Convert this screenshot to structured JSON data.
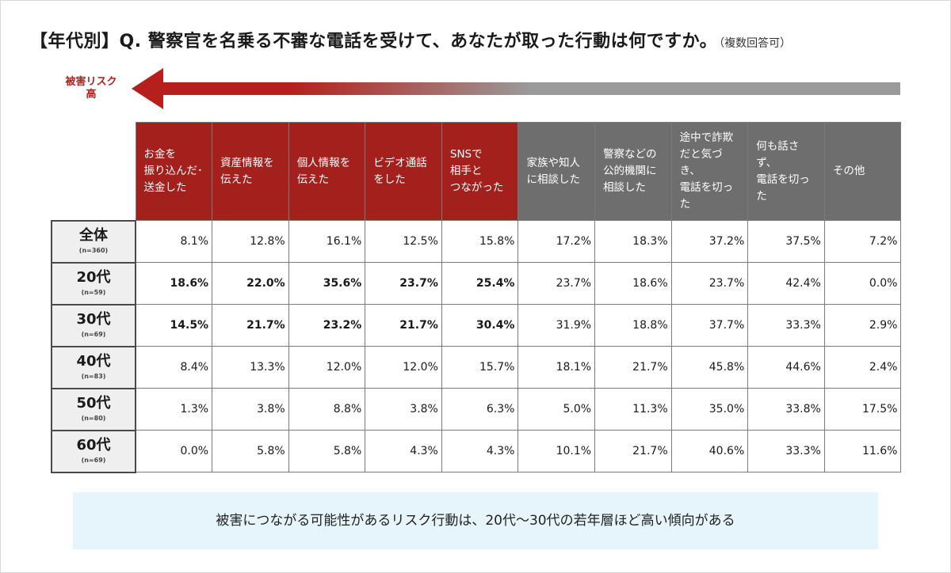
{
  "title": {
    "main": "【年代別】Q. 警察官を名乗る不審な電話を受けて、あなたが取った行動は何ですか。",
    "sub": "（複数回答可）"
  },
  "risk_label": "被害リスク\n高",
  "colors": {
    "risk_header": "#a3201c",
    "safe_header": "#6e6e6e",
    "highlight": "#fbeee4",
    "arrow_red": "#b5201c",
    "arrow_gray": "#9a9a9a",
    "note_bg": "#e6f4fc"
  },
  "chart_data": {
    "type": "table",
    "columns": [
      {
        "label": "お金を\n振り込んだ･\n送金した",
        "group": "risk"
      },
      {
        "label": "資産情報を\n伝えた",
        "group": "risk"
      },
      {
        "label": "個人情報を\n伝えた",
        "group": "risk"
      },
      {
        "label": "ビデオ通話\nをした",
        "group": "risk"
      },
      {
        "label": "SNSで\n相手と\nつながった",
        "group": "risk"
      },
      {
        "label": "家族や知人\nに相談した",
        "group": "safe"
      },
      {
        "label": "警察などの\n公的機関に\n相談した",
        "group": "safe"
      },
      {
        "label": "途中で詐欺\nだと気づき、\n電話を切っ\nた",
        "group": "safe"
      },
      {
        "label": "何も話さず、\n電話を切っ\nた",
        "group": "safe"
      },
      {
        "label": "その他",
        "group": "safe"
      }
    ],
    "rows": [
      {
        "label": "全体",
        "n": "(n=360)",
        "values": [
          "8.1%",
          "12.8%",
          "16.1%",
          "12.5%",
          "15.8%",
          "17.2%",
          "18.3%",
          "37.2%",
          "37.5%",
          "7.2%"
        ],
        "highlight": false
      },
      {
        "label": "20代",
        "n": "(n=59)",
        "values": [
          "18.6%",
          "22.0%",
          "35.6%",
          "23.7%",
          "25.4%",
          "23.7%",
          "18.6%",
          "23.7%",
          "42.4%",
          "0.0%"
        ],
        "highlight": true
      },
      {
        "label": "30代",
        "n": "(n=69)",
        "values": [
          "14.5%",
          "21.7%",
          "23.2%",
          "21.7%",
          "30.4%",
          "31.9%",
          "18.8%",
          "37.7%",
          "33.3%",
          "2.9%"
        ],
        "highlight": true
      },
      {
        "label": "40代",
        "n": "(n=83)",
        "values": [
          "8.4%",
          "13.3%",
          "12.0%",
          "12.0%",
          "15.7%",
          "18.1%",
          "21.7%",
          "45.8%",
          "44.6%",
          "2.4%"
        ],
        "highlight": false
      },
      {
        "label": "50代",
        "n": "(n=80)",
        "values": [
          "1.3%",
          "3.8%",
          "8.8%",
          "3.8%",
          "6.3%",
          "5.0%",
          "11.3%",
          "35.0%",
          "33.8%",
          "17.5%"
        ],
        "highlight": false
      },
      {
        "label": "60代",
        "n": "(n=69)",
        "values": [
          "0.0%",
          "5.8%",
          "5.8%",
          "4.3%",
          "4.3%",
          "10.1%",
          "21.7%",
          "40.6%",
          "33.3%",
          "11.6%"
        ],
        "highlight": false
      }
    ]
  },
  "note": "被害につながる可能性があるリスク行動は、20代〜30代の若年層ほど高い傾向がある"
}
